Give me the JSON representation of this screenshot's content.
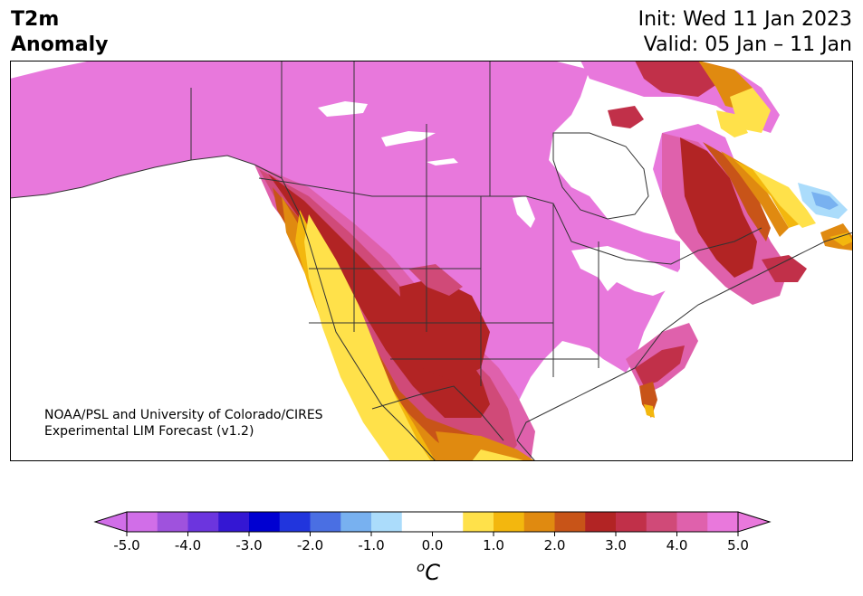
{
  "header": {
    "title_line1": "T2m",
    "title_line2": "Anomaly",
    "init": "Init: Wed 11 Jan 2023",
    "valid": "Valid: 05 Jan – 11 Jan"
  },
  "credit": {
    "line1": "NOAA/PSL and University of Colorado/CIRES",
    "line2": "Experimental LIM Forecast (v1.2)"
  },
  "colorbar": {
    "ticks": [
      "-5.0",
      "-4.0",
      "-3.0",
      "-2.0",
      "-1.0",
      "0.0",
      "1.0",
      "2.0",
      "3.0",
      "4.0",
      "5.0"
    ],
    "units_base": "C",
    "units_sup": "o",
    "colors": [
      "#d16ee8",
      "#9f52dd",
      "#6c35de",
      "#3417d3",
      "#0000d1",
      "#2135dd",
      "#4a6fe3",
      "#78b1f0",
      "#abdcfb",
      "#ffffff",
      "#ffffff",
      "#ffe14a",
      "#f3b70e",
      "#e08a10",
      "#c85418",
      "#b22424",
      "#c13049",
      "#d04a78",
      "#df61ac",
      "#e978dc"
    ],
    "over_color": "#e978dc",
    "under_color": "#d16ee8"
  },
  "map_colors": {
    "ocean": "#ffffff",
    "plus5": "#e878dc",
    "plus4": "#df61ac",
    "plus35": "#d04a78",
    "plus3": "#b22424",
    "plus25": "#c85418",
    "plus2": "#e08a10",
    "plus15": "#f3b70e",
    "plus1": "#ffe14a",
    "minus1": "#abdcfb",
    "minus15": "#78b1f0",
    "border": "#333333"
  }
}
